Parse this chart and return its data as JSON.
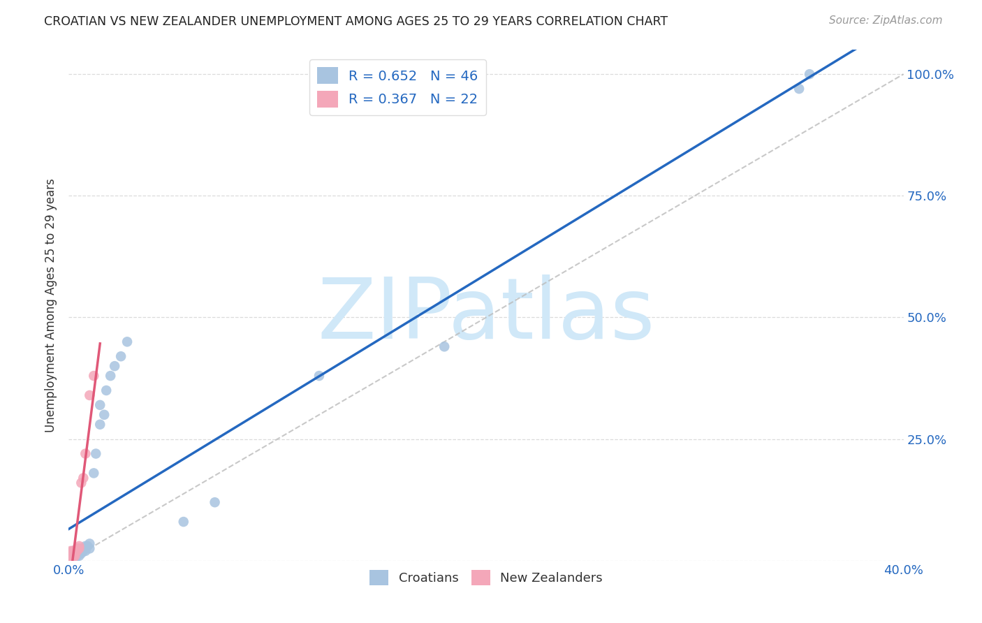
{
  "title": "CROATIAN VS NEW ZEALANDER UNEMPLOYMENT AMONG AGES 25 TO 29 YEARS CORRELATION CHART",
  "source": "Source: ZipAtlas.com",
  "ylabel": "Unemployment Among Ages 25 to 29 years",
  "xlim": [
    0.0,
    0.4
  ],
  "ylim": [
    0.0,
    1.05
  ],
  "xticks": [
    0.0,
    0.1,
    0.2,
    0.3,
    0.4
  ],
  "xticklabels": [
    "0.0%",
    "",
    "",
    "",
    "40.0%"
  ],
  "yticks": [
    0.0,
    0.25,
    0.5,
    0.75,
    1.0
  ],
  "yticklabels": [
    "",
    "25.0%",
    "50.0%",
    "75.0%",
    "100.0%"
  ],
  "blue_R": 0.652,
  "blue_N": 46,
  "pink_R": 0.367,
  "pink_N": 22,
  "blue_color": "#a8c4e0",
  "pink_color": "#f4a7b9",
  "blue_line_color": "#2468c0",
  "pink_line_color": "#e05878",
  "grid_color": "#cccccc",
  "watermark": "ZIPatlas",
  "watermark_color": "#d0e8f8",
  "legend_blue_label": "Croatians",
  "legend_pink_label": "New Zealanders",
  "blue_scatter_x": [
    0.001,
    0.001,
    0.001,
    0.002,
    0.002,
    0.002,
    0.002,
    0.002,
    0.003,
    0.003,
    0.003,
    0.003,
    0.004,
    0.004,
    0.004,
    0.004,
    0.005,
    0.005,
    0.005,
    0.005,
    0.006,
    0.006,
    0.006,
    0.007,
    0.007,
    0.008,
    0.008,
    0.009,
    0.01,
    0.01,
    0.012,
    0.013,
    0.015,
    0.015,
    0.017,
    0.018,
    0.02,
    0.022,
    0.025,
    0.028,
    0.055,
    0.07,
    0.12,
    0.18,
    0.35,
    0.355
  ],
  "blue_scatter_y": [
    0.005,
    0.01,
    0.012,
    0.005,
    0.008,
    0.01,
    0.015,
    0.02,
    0.005,
    0.008,
    0.01,
    0.015,
    0.01,
    0.015,
    0.02,
    0.025,
    0.01,
    0.015,
    0.02,
    0.025,
    0.015,
    0.02,
    0.025,
    0.02,
    0.025,
    0.02,
    0.03,
    0.03,
    0.025,
    0.035,
    0.18,
    0.22,
    0.28,
    0.32,
    0.3,
    0.35,
    0.38,
    0.4,
    0.42,
    0.45,
    0.08,
    0.12,
    0.38,
    0.44,
    0.97,
    1.0
  ],
  "pink_scatter_x": [
    0.001,
    0.001,
    0.001,
    0.001,
    0.001,
    0.002,
    0.002,
    0.002,
    0.002,
    0.002,
    0.003,
    0.003,
    0.003,
    0.004,
    0.004,
    0.005,
    0.005,
    0.006,
    0.007,
    0.008,
    0.01,
    0.012
  ],
  "pink_scatter_y": [
    0.005,
    0.008,
    0.01,
    0.015,
    0.02,
    0.005,
    0.008,
    0.01,
    0.015,
    0.02,
    0.01,
    0.015,
    0.02,
    0.02,
    0.025,
    0.025,
    0.03,
    0.16,
    0.17,
    0.22,
    0.34,
    0.38
  ]
}
